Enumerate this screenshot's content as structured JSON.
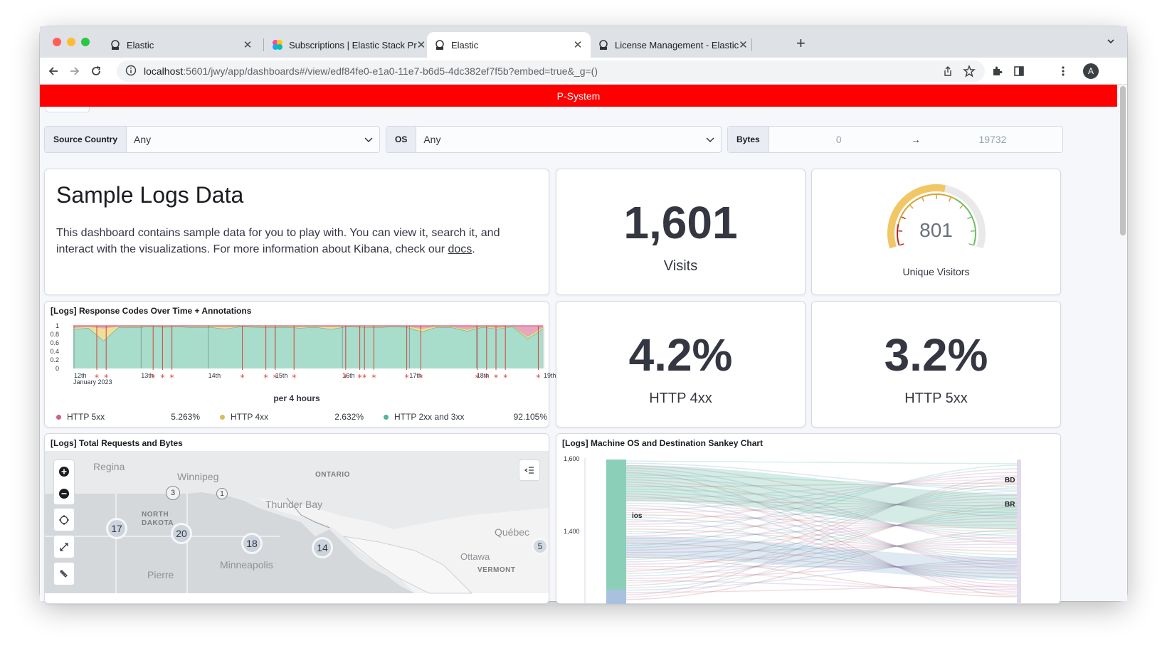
{
  "browser": {
    "tabs": [
      {
        "title": "Elastic",
        "active": false
      },
      {
        "title": "Subscriptions | Elastic Stack Pr",
        "active": false
      },
      {
        "title": "Elastic",
        "active": true
      },
      {
        "title": "License Management - Elastic",
        "active": false
      }
    ],
    "url_host": "localhost",
    "url_path": ":5601/jwy/app/dashboards#/view/edf84fe0-e1a0-11e7-b6d5-4dc382ef7f5b?embed=true&_g=()",
    "profile_initial": "A"
  },
  "banner": {
    "text": "P-System",
    "color": "#ff0000"
  },
  "controls": {
    "source_country": {
      "label": "Source Country",
      "value": "Any"
    },
    "os": {
      "label": "OS",
      "value": "Any"
    },
    "bytes": {
      "label": "Bytes",
      "min": "0",
      "arrow": "→",
      "max": "19732"
    }
  },
  "markdown": {
    "title": "Sample Logs Data",
    "text_before": "This dashboard contains sample data for you to play with. You can view it, search it, and interact with the visualizations. For more information about Kibana, check our ",
    "link": "docs",
    "text_after": "."
  },
  "metrics": {
    "visits": {
      "value": "1,601",
      "label": "Visits"
    },
    "unique_visitors": {
      "value": "801",
      "label": "Unique Visitors",
      "gauge_fraction": 0.55
    },
    "http4xx": {
      "value": "4.2%",
      "label": "HTTP 4xx"
    },
    "http5xx": {
      "value": "3.2%",
      "label": "HTTP 5xx"
    }
  },
  "response_codes": {
    "title": "[Logs] Response Codes Over Time + Annotations",
    "interval_label": "per 4 hours",
    "date_sub": "January 2023",
    "legend": [
      {
        "name": "HTTP 5xx",
        "value": "5.263%",
        "color": "#d36086"
      },
      {
        "name": "HTTP 4xx",
        "value": "2.632%",
        "color": "#d6bf57"
      },
      {
        "name": "HTTP 2xx and 3xx",
        "value": "92.105%",
        "color": "#54b399"
      }
    ]
  },
  "chart_data": [
    {
      "type": "area",
      "title": "[Logs] Response Codes Over Time + Annotations",
      "xlabel": "per 4 hours",
      "y_ticks": [
        "1",
        "0.8",
        "0.6",
        "0.4",
        "0.2",
        "0"
      ],
      "x_ticks": [
        "12th",
        "13th",
        "14th",
        "15th",
        "16th",
        "17th",
        "18th",
        "19th"
      ],
      "ylim": [
        0,
        1
      ],
      "stacked": true,
      "series": [
        {
          "name": "HTTP 2xx and 3xx",
          "values": [
            0.92,
            0.95,
            0.65,
            0.97,
            0.96,
            0.98,
            0.97,
            0.98,
            0.96,
            0.97,
            0.93,
            0.98,
            0.97,
            0.96,
            0.97,
            0.95,
            0.97,
            0.92,
            0.98,
            0.97,
            0.96,
            0.98,
            0.97,
            0.86,
            0.97,
            0.96,
            0.88,
            0.97,
            0.93,
            0.98,
            0.7,
            0.93
          ]
        },
        {
          "name": "HTTP 4xx",
          "values": [
            0.04,
            0.03,
            0.3,
            0.02,
            0.02,
            0.01,
            0.02,
            0.01,
            0.02,
            0.02,
            0.05,
            0.01,
            0.02,
            0.02,
            0.02,
            0.03,
            0.02,
            0.06,
            0.01,
            0.02,
            0.02,
            0.01,
            0.02,
            0.08,
            0.02,
            0.02,
            0.04,
            0.02,
            0.03,
            0.01,
            0.05,
            0.04
          ]
        },
        {
          "name": "HTTP 5xx",
          "values": [
            0.04,
            0.02,
            0.05,
            0.01,
            0.02,
            0.01,
            0.01,
            0.01,
            0.02,
            0.01,
            0.02,
            0.01,
            0.01,
            0.02,
            0.01,
            0.02,
            0.01,
            0.02,
            0.01,
            0.01,
            0.02,
            0.01,
            0.01,
            0.06,
            0.01,
            0.02,
            0.08,
            0.01,
            0.04,
            0.01,
            0.25,
            0.03
          ]
        }
      ],
      "annotation_x": [
        0.05,
        0.07,
        0.17,
        0.19,
        0.21,
        0.36,
        0.41,
        0.43,
        0.47,
        0.58,
        0.61,
        0.62,
        0.64,
        0.71,
        0.74,
        0.86,
        0.88,
        0.9,
        0.92,
        0.99
      ]
    },
    {
      "type": "sankey",
      "title": "[Logs] Machine OS and Destination Sankey Chart",
      "y_ticks": [
        "1,600",
        "1,400"
      ],
      "nodes_left": [
        "ios"
      ],
      "nodes_right": [
        "BD",
        "BR"
      ]
    }
  ],
  "map": {
    "title": "[Logs] Total Requests and Bytes",
    "places": [
      "Regina",
      "Winnipeg",
      "ONTARIO",
      "Thunder Bay",
      "NORTH DAKOTA",
      "Minneapolis",
      "Québec",
      "Ottawa",
      "VERMONT",
      "Pierre"
    ],
    "clusters": [
      "3",
      "1",
      "17",
      "20",
      "18",
      "14",
      "5"
    ]
  }
}
